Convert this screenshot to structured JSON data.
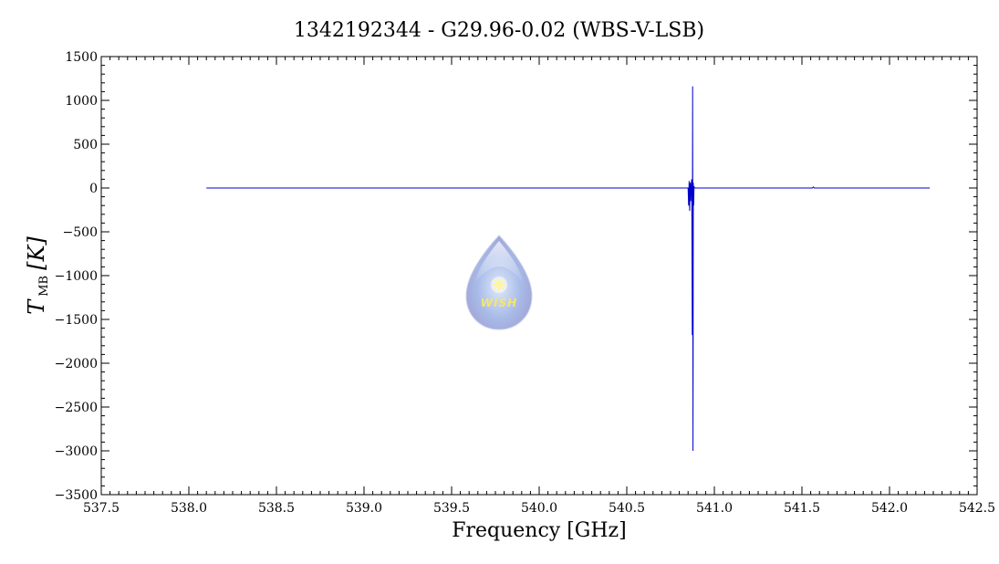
{
  "chart_data": {
    "type": "line",
    "title": "1342192344 - G29.96-0.02 (WBS-V-LSB)",
    "xlabel": "Frequency [GHz]",
    "ylabel_main": "T",
    "ylabel_sub": "MB",
    "ylabel_unit": "[K]",
    "xlim": [
      537.5,
      542.5
    ],
    "ylim": [
      -3500,
      1500
    ],
    "x_ticks": [
      537.5,
      538.0,
      538.5,
      539.0,
      539.5,
      540.0,
      540.5,
      541.0,
      541.5,
      542.0,
      542.5
    ],
    "x_tick_labels": [
      "537.5",
      "538.0",
      "538.5",
      "539.0",
      "539.5",
      "540.0",
      "540.5",
      "541.0",
      "541.5",
      "542.0",
      "542.5"
    ],
    "y_ticks": [
      -3500,
      -3000,
      -2500,
      -2000,
      -1500,
      -1000,
      -500,
      0,
      500,
      1000,
      1500
    ],
    "y_tick_labels": [
      "−3500",
      "−3000",
      "−2500",
      "−2000",
      "−1500",
      "−1000",
      "−500",
      "0",
      "500",
      "1000",
      "1500"
    ],
    "grid": false,
    "series": [
      {
        "color": "#0000cc",
        "x": [
          538.1,
          540.85,
          540.853,
          540.856,
          540.859,
          540.862,
          540.865,
          540.868,
          540.871,
          540.874,
          540.876,
          540.878,
          540.88,
          540.882,
          540.884,
          540.886,
          540.89,
          541.56,
          541.565,
          541.57,
          542.23
        ],
        "y": [
          0,
          0,
          -200,
          80,
          -260,
          60,
          -150,
          50,
          100,
          -1680,
          1160,
          -3000,
          60,
          -200,
          20,
          0,
          0,
          0,
          12,
          0,
          0
        ]
      }
    ]
  },
  "logo": {
    "text": "WISH",
    "colors": {
      "drop_top": "#eef2fb",
      "drop_mid": "#a9bbe6",
      "drop_bottom": "#b4b4dc",
      "star": "#fff5a0"
    }
  }
}
